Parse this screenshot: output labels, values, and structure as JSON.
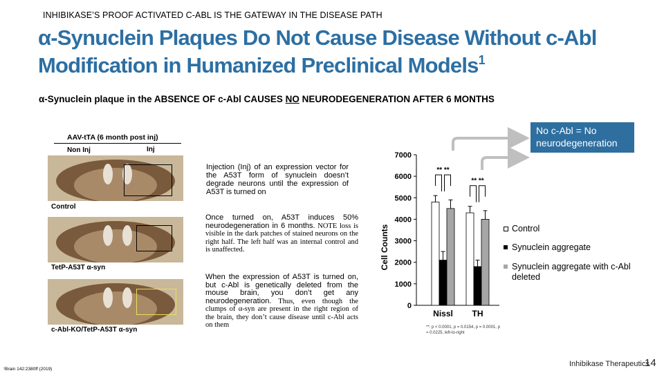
{
  "header": {
    "eyebrow": "INHIBIKASE’S PROOF ACTIVATED C-ABL IS THE GATEWAY IN THE DISEASE PATH",
    "title_line1": "α-Synuclein Plaques Do Not Cause Disease Without c-Abl",
    "title_line2": "Modification in Humanized Preclinical Models",
    "title_sup": "1"
  },
  "subhead": {
    "before": "α-Synuclein plaque in the ABSENCE OF c-Abl CAUSES ",
    "emph": "NO",
    "after": " NEURODEGENERATION AFTER 6 MONTHS"
  },
  "figure": {
    "aav_label": "AAV-tTA (6 month post inj)",
    "noninj_label": "Non Inj",
    "inj_label": "Inj",
    "panels": [
      {
        "label": "Control"
      },
      {
        "label": "TetP-A53T α-syn"
      },
      {
        "label": "c-Abl-KO/TetP-A53T α-syn"
      }
    ]
  },
  "descriptions": {
    "d1": "Injection (Inj) of an expression vector for the A53T form of synuclein doesn’t degrade neurons until the expression of A53T is turned on",
    "d2_main": "Once turned on, A53T induces 50% neurodegeneration in 6 months.",
    "d2_note": " NOTE loss is visible in the dark patches of stained neurons on the right half.  The left half was an internal control and is unaffected.",
    "d3_main": "When the expression of A53T is turned on, but c-Abl is genetically deleted from the mouse brain, you don’t get any neurodegeneration.",
    "d3_note": "  Thus, even though the clumps of α-syn are present in the right region of the brain, they don’t cause disease until c-Abl acts on them"
  },
  "callout": "No c-Abl = No neurodegeneration",
  "chart_data": {
    "type": "bar",
    "ylabel": "Cell Counts",
    "ylim": [
      0,
      7000
    ],
    "yticks": [
      "0",
      "1000",
      "2000",
      "3000",
      "4000",
      "5000",
      "6000",
      "7000"
    ],
    "categories": [
      "Nissl",
      "TH"
    ],
    "series": [
      {
        "name": "Control",
        "values": [
          4800,
          4300
        ],
        "errors": [
          300,
          300
        ],
        "color": "#ffffff"
      },
      {
        "name": "Synuclein aggregate",
        "values": [
          2100,
          1800
        ],
        "errors": [
          400,
          300
        ],
        "color": "#000000"
      },
      {
        "name": "Synuclein aggregate with c-Abl deleted",
        "values": [
          4500,
          4000
        ],
        "errors": [
          400,
          400
        ],
        "color": "#a6a6a6"
      }
    ],
    "significance": [
      "** **",
      "** **"
    ],
    "stats_note": "**: p < 0.0001, p = 0.0154, p = 0.0001, p = 0.0225, left-to-right"
  },
  "legend": {
    "control": "Control",
    "syn": "Synuclein aggregate",
    "syn_ko": "Synuclein aggregate with c-Abl deleted"
  },
  "footer": {
    "footnote": "¹Brain 142:2380ff (2019)",
    "brand": "Inhibikase Therapeutics",
    "page": "14"
  }
}
